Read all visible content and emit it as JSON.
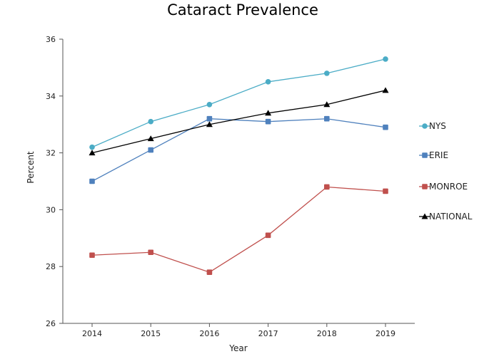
{
  "chart_data": {
    "type": "line",
    "title": "Cataract Prevalence",
    "xlabel": "Year",
    "ylabel": "Percent",
    "x": [
      "2014",
      "2015",
      "2016",
      "2017",
      "2018",
      "2019"
    ],
    "ylim": [
      26,
      36
    ],
    "yticks": [
      "26",
      "28",
      "30",
      "32",
      "34",
      "36"
    ],
    "grid": false,
    "legend_position": "right",
    "series": [
      {
        "name": "NYS",
        "color": "#4bacc6",
        "marker": "circle",
        "values": [
          32.2,
          33.1,
          33.7,
          34.5,
          34.8,
          35.3
        ]
      },
      {
        "name": "ERIE",
        "color": "#4f81bd",
        "marker": "square",
        "values": [
          31.0,
          32.1,
          33.2,
          33.1,
          33.2,
          32.9
        ]
      },
      {
        "name": "MONROE",
        "color": "#c0504d",
        "marker": "square",
        "values": [
          28.4,
          28.5,
          27.8,
          29.1,
          30.8,
          30.65
        ]
      },
      {
        "name": "NATIONAL",
        "color": "#000000",
        "marker": "triangle",
        "values": [
          32.0,
          32.5,
          33.0,
          33.4,
          33.7,
          34.2
        ]
      }
    ]
  }
}
